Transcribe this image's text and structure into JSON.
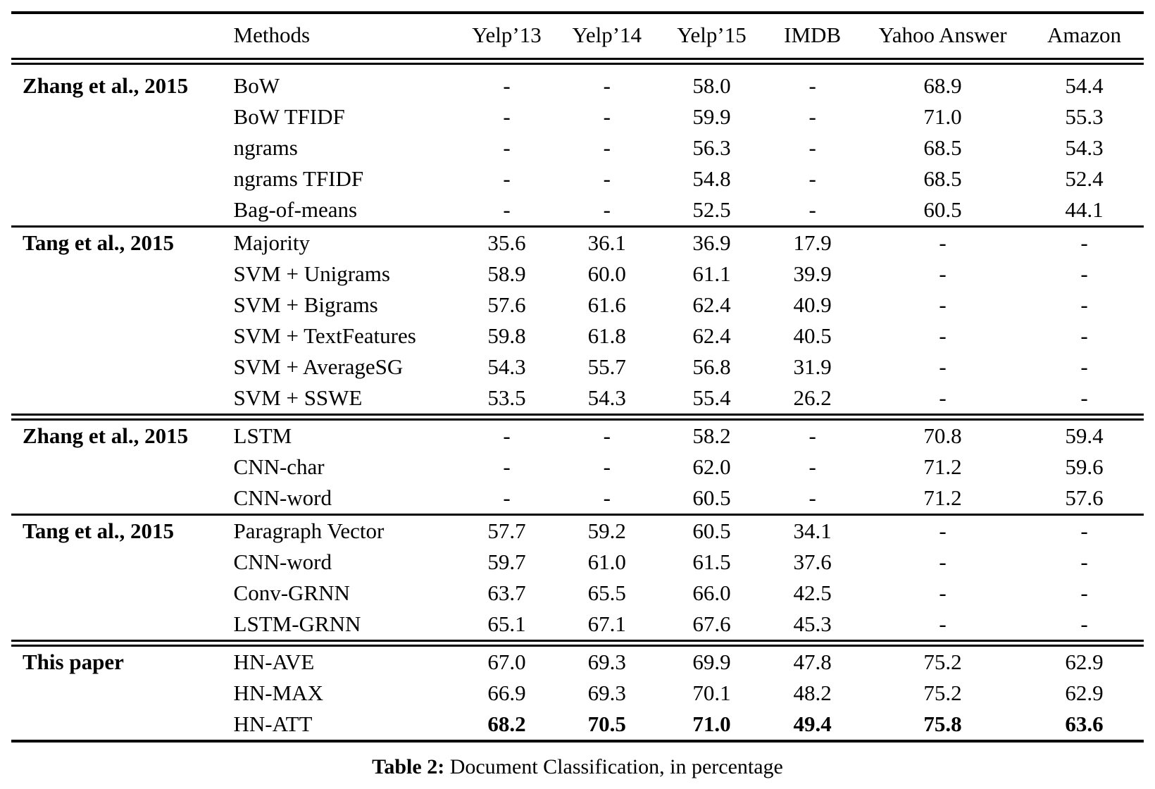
{
  "table": {
    "caption": {
      "label": "Table 2:",
      "text": "Document Classification, in percentage"
    },
    "columns": [
      "",
      "Methods",
      "Yelp’13",
      "Yelp’14",
      "Yelp’15",
      "IMDB",
      "Yahoo Answer",
      "Amazon"
    ],
    "groups": [
      {
        "label": "Zhang et al., 2015",
        "rule_after": "single",
        "rows": [
          {
            "method": "BoW",
            "bold": false,
            "values": [
              "-",
              "-",
              "58.0",
              "-",
              "68.9",
              "54.4"
            ]
          },
          {
            "method": "BoW TFIDF",
            "bold": false,
            "values": [
              "-",
              "-",
              "59.9",
              "-",
              "71.0",
              "55.3"
            ]
          },
          {
            "method": "ngrams",
            "bold": false,
            "values": [
              "-",
              "-",
              "56.3",
              "-",
              "68.5",
              "54.3"
            ]
          },
          {
            "method": "ngrams TFIDF",
            "bold": false,
            "values": [
              "-",
              "-",
              "54.8",
              "-",
              "68.5",
              "52.4"
            ]
          },
          {
            "method": "Bag-of-means",
            "bold": false,
            "values": [
              "-",
              "-",
              "52.5",
              "-",
              "60.5",
              "44.1"
            ]
          }
        ]
      },
      {
        "label": "Tang et al., 2015",
        "rule_after": "double",
        "rows": [
          {
            "method": "Majority",
            "bold": false,
            "values": [
              "35.6",
              "36.1",
              "36.9",
              "17.9",
              "-",
              "-"
            ]
          },
          {
            "method": "SVM + Unigrams",
            "bold": false,
            "values": [
              "58.9",
              "60.0",
              "61.1",
              "39.9",
              "-",
              "-"
            ]
          },
          {
            "method": "SVM + Bigrams",
            "bold": false,
            "values": [
              "57.6",
              "61.6",
              "62.4",
              "40.9",
              "-",
              "-"
            ]
          },
          {
            "method": "SVM + TextFeatures",
            "bold": false,
            "values": [
              "59.8",
              "61.8",
              "62.4",
              "40.5",
              "-",
              "-"
            ]
          },
          {
            "method": "SVM + AverageSG",
            "bold": false,
            "values": [
              "54.3",
              "55.7",
              "56.8",
              "31.9",
              "-",
              "-"
            ]
          },
          {
            "method": "SVM + SSWE",
            "bold": false,
            "values": [
              "53.5",
              "54.3",
              "55.4",
              "26.2",
              "-",
              "-"
            ]
          }
        ]
      },
      {
        "label": "Zhang et al., 2015",
        "rule_after": "single",
        "rows": [
          {
            "method": "LSTM",
            "bold": false,
            "values": [
              "-",
              "-",
              "58.2",
              "-",
              "70.8",
              "59.4"
            ]
          },
          {
            "method": "CNN-char",
            "bold": false,
            "values": [
              "-",
              "-",
              "62.0",
              "-",
              "71.2",
              "59.6"
            ]
          },
          {
            "method": "CNN-word",
            "bold": false,
            "values": [
              "-",
              "-",
              "60.5",
              "-",
              "71.2",
              "57.6"
            ]
          }
        ]
      },
      {
        "label": "Tang et al., 2015",
        "rule_after": "double",
        "rows": [
          {
            "method": "Paragraph Vector",
            "bold": false,
            "values": [
              "57.7",
              "59.2",
              "60.5",
              "34.1",
              "-",
              "-"
            ]
          },
          {
            "method": "CNN-word",
            "bold": false,
            "values": [
              "59.7",
              "61.0",
              "61.5",
              "37.6",
              "-",
              "-"
            ]
          },
          {
            "method": "Conv-GRNN",
            "bold": false,
            "values": [
              "63.7",
              "65.5",
              "66.0",
              "42.5",
              "-",
              "-"
            ]
          },
          {
            "method": "LSTM-GRNN",
            "bold": false,
            "values": [
              "65.1",
              "67.1",
              "67.6",
              "45.3",
              "-",
              "-"
            ]
          }
        ]
      },
      {
        "label": "This paper",
        "rule_after": "none",
        "rows": [
          {
            "method": "HN-AVE",
            "bold": false,
            "values": [
              "67.0",
              "69.3",
              "69.9",
              "47.8",
              "75.2",
              "62.9"
            ]
          },
          {
            "method": "HN-MAX",
            "bold": false,
            "values": [
              "66.9",
              "69.3",
              "70.1",
              "48.2",
              "75.2",
              "62.9"
            ]
          },
          {
            "method": "HN-ATT",
            "bold": true,
            "values": [
              "68.2",
              "70.5",
              "71.0",
              "49.4",
              "75.8",
              "63.6"
            ]
          }
        ]
      }
    ]
  }
}
